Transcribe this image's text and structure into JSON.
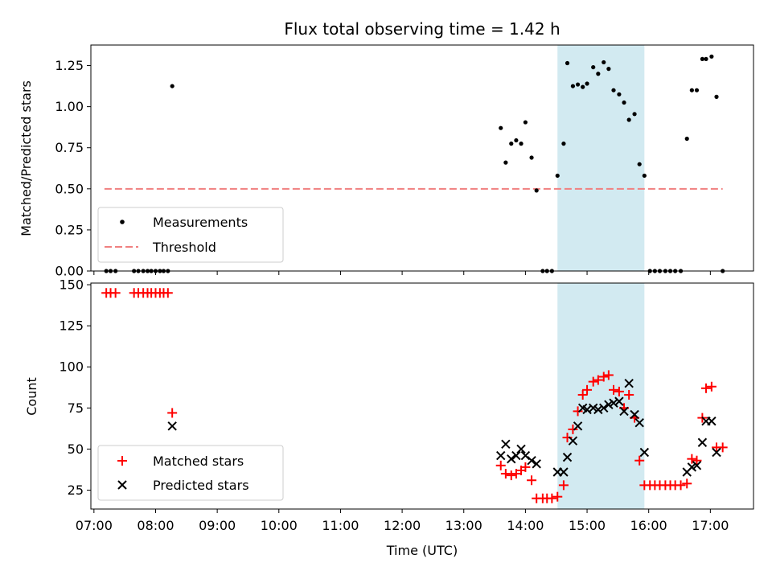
{
  "chart_data": [
    {
      "type": "scatter",
      "title": "Flux total observing time = 1.42 h",
      "ylabel": "Matched/Predicted stars",
      "xlabel": "",
      "xlim": [
        6.95,
        17.7
      ],
      "ylim": [
        0,
        1.375
      ],
      "yticks": [
        "0.00",
        "0.25",
        "0.50",
        "0.75",
        "1.00",
        "1.25"
      ],
      "ytick_values": [
        0,
        0.25,
        0.5,
        0.75,
        1.0,
        1.25
      ],
      "shaded_region": [
        14.52,
        15.93
      ],
      "threshold": {
        "name": "Threshold",
        "value": 0.5,
        "x_range": [
          7.17,
          17.2
        ],
        "color": "#f08080"
      },
      "series": [
        {
          "name": "Measurements",
          "color": "#000000",
          "points": [
            [
              7.2,
              0
            ],
            [
              7.27,
              0
            ],
            [
              7.35,
              0
            ],
            [
              7.65,
              0
            ],
            [
              7.72,
              0
            ],
            [
              7.8,
              0
            ],
            [
              7.87,
              0
            ],
            [
              7.93,
              0
            ],
            [
              8.0,
              0
            ],
            [
              8.07,
              0
            ],
            [
              8.13,
              0
            ],
            [
              8.2,
              0
            ],
            [
              8.27,
              1.125
            ],
            [
              13.6,
              0.87
            ],
            [
              13.68,
              0.66
            ],
            [
              13.77,
              0.775
            ],
            [
              13.85,
              0.795
            ],
            [
              13.93,
              0.775
            ],
            [
              14.0,
              0.905
            ],
            [
              14.1,
              0.69
            ],
            [
              14.18,
              0.49
            ],
            [
              14.28,
              0
            ],
            [
              14.35,
              0
            ],
            [
              14.43,
              0
            ],
            [
              14.52,
              0.58
            ],
            [
              14.62,
              0.775
            ],
            [
              14.68,
              1.265
            ],
            [
              14.77,
              1.125
            ],
            [
              14.85,
              1.135
            ],
            [
              14.93,
              1.12
            ],
            [
              15.0,
              1.14
            ],
            [
              15.1,
              1.24
            ],
            [
              15.18,
              1.2
            ],
            [
              15.27,
              1.27
            ],
            [
              15.35,
              1.23
            ],
            [
              15.43,
              1.1
            ],
            [
              15.52,
              1.075
            ],
            [
              15.6,
              1.025
            ],
            [
              15.68,
              0.92
            ],
            [
              15.77,
              0.955
            ],
            [
              15.85,
              0.65
            ],
            [
              15.93,
              0.58
            ],
            [
              16.02,
              0
            ],
            [
              16.1,
              0
            ],
            [
              16.18,
              0
            ],
            [
              16.27,
              0
            ],
            [
              16.35,
              0
            ],
            [
              16.43,
              0
            ],
            [
              16.52,
              0
            ],
            [
              16.62,
              0.805
            ],
            [
              16.7,
              1.1
            ],
            [
              16.78,
              1.1
            ],
            [
              16.87,
              1.29
            ],
            [
              16.93,
              1.29
            ],
            [
              17.02,
              1.305
            ],
            [
              17.1,
              1.06
            ],
            [
              17.2,
              0
            ]
          ]
        }
      ],
      "legend": {
        "placement": "lower-left",
        "entries": [
          "Measurements",
          "Threshold"
        ]
      }
    },
    {
      "type": "scatter",
      "title": "",
      "ylabel": "Count",
      "xlabel": "Time (UTC)",
      "xlim": [
        6.95,
        17.7
      ],
      "ylim": [
        13.5,
        151
      ],
      "yticks": [
        "25",
        "50",
        "75",
        "100",
        "125",
        "150"
      ],
      "ytick_values": [
        25,
        50,
        75,
        100,
        125,
        150
      ],
      "xticks": [
        "07:00",
        "08:00",
        "09:00",
        "10:00",
        "11:00",
        "12:00",
        "13:00",
        "14:00",
        "15:00",
        "16:00",
        "17:00"
      ],
      "xtick_values": [
        7,
        8,
        9,
        10,
        11,
        12,
        13,
        14,
        15,
        16,
        17
      ],
      "shaded_region": [
        14.52,
        15.93
      ],
      "series": [
        {
          "name": "Matched stars",
          "marker": "plus",
          "color": "#ff0000",
          "points": [
            [
              7.2,
              145
            ],
            [
              7.27,
              145
            ],
            [
              7.35,
              145
            ],
            [
              7.65,
              145
            ],
            [
              7.72,
              145
            ],
            [
              7.8,
              145
            ],
            [
              7.87,
              145
            ],
            [
              7.93,
              145
            ],
            [
              8.0,
              145
            ],
            [
              8.07,
              145
            ],
            [
              8.13,
              145
            ],
            [
              8.2,
              145
            ],
            [
              8.27,
              72
            ],
            [
              13.6,
              40
            ],
            [
              13.68,
              35
            ],
            [
              13.77,
              34
            ],
            [
              13.85,
              35
            ],
            [
              13.93,
              37
            ],
            [
              14.0,
              39
            ],
            [
              14.1,
              31
            ],
            [
              14.18,
              20
            ],
            [
              14.28,
              20
            ],
            [
              14.35,
              20
            ],
            [
              14.43,
              20
            ],
            [
              14.52,
              21
            ],
            [
              14.62,
              28
            ],
            [
              14.68,
              57
            ],
            [
              14.77,
              62
            ],
            [
              14.85,
              73
            ],
            [
              14.93,
              83
            ],
            [
              15.0,
              86
            ],
            [
              15.1,
              91
            ],
            [
              15.18,
              92
            ],
            [
              15.27,
              94
            ],
            [
              15.35,
              95
            ],
            [
              15.43,
              86
            ],
            [
              15.52,
              85
            ],
            [
              15.6,
              75
            ],
            [
              15.68,
              83
            ],
            [
              15.77,
              69
            ],
            [
              15.85,
              43
            ],
            [
              15.93,
              28
            ],
            [
              16.02,
              28
            ],
            [
              16.1,
              28
            ],
            [
              16.18,
              28
            ],
            [
              16.27,
              28
            ],
            [
              16.35,
              28
            ],
            [
              16.43,
              28
            ],
            [
              16.52,
              28
            ],
            [
              16.62,
              29
            ],
            [
              16.7,
              44
            ],
            [
              16.78,
              43
            ],
            [
              16.87,
              69
            ],
            [
              16.93,
              87
            ],
            [
              17.02,
              88
            ],
            [
              17.1,
              51
            ],
            [
              17.2,
              51
            ]
          ]
        },
        {
          "name": "Predicted stars",
          "marker": "x",
          "color": "#000000",
          "points": [
            [
              8.27,
              64
            ],
            [
              13.6,
              46
            ],
            [
              13.68,
              53
            ],
            [
              13.77,
              44
            ],
            [
              13.85,
              46
            ],
            [
              13.93,
              50
            ],
            [
              14.0,
              46
            ],
            [
              14.1,
              43
            ],
            [
              14.18,
              41
            ],
            [
              14.52,
              36
            ],
            [
              14.62,
              36
            ],
            [
              14.68,
              45
            ],
            [
              14.77,
              55
            ],
            [
              14.85,
              64
            ],
            [
              14.93,
              75
            ],
            [
              15.0,
              74
            ],
            [
              15.1,
              75
            ],
            [
              15.18,
              74
            ],
            [
              15.27,
              75
            ],
            [
              15.35,
              77
            ],
            [
              15.43,
              78
            ],
            [
              15.52,
              79
            ],
            [
              15.6,
              73
            ],
            [
              15.68,
              90
            ],
            [
              15.77,
              71
            ],
            [
              15.85,
              66
            ],
            [
              15.93,
              48
            ],
            [
              16.62,
              36
            ],
            [
              16.7,
              39
            ],
            [
              16.78,
              40
            ],
            [
              16.87,
              54
            ],
            [
              16.93,
              67
            ],
            [
              17.02,
              67
            ],
            [
              17.1,
              48
            ]
          ]
        }
      ],
      "legend": {
        "placement": "lower-left",
        "entries": [
          "Matched stars",
          "Predicted stars"
        ]
      }
    }
  ]
}
